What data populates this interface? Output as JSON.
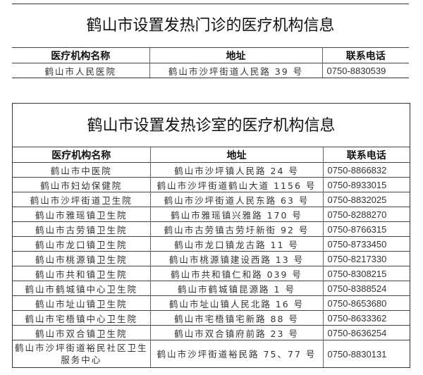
{
  "clinics": {
    "title": "鹤山市设置发热门诊的医疗机构信息",
    "headers": [
      "医疗机构名称",
      "地址",
      "联系电话"
    ],
    "rows": [
      {
        "name": "鹤山市人民医院",
        "address": "鹤山市沙坪街道人民路 39 号",
        "phone": "0750-8830539"
      }
    ]
  },
  "rooms": {
    "title": "鹤山市设置发热诊室的医疗机构信息",
    "headers": [
      "医疗机构名称",
      "地址",
      "联系电话"
    ],
    "rows": [
      {
        "name": "鹤山市中医院",
        "address": "鹤山市沙坪镇人民路 24 号",
        "phone": "0750-8866832"
      },
      {
        "name": "鹤山市妇幼保健院",
        "address": "鹤山市沙坪街道鹤山大道 1156 号",
        "phone": "0750-8933015"
      },
      {
        "name": "鹤山市沙坪街道卫生院",
        "address": "鹤山市沙坪街道人民东路 63 号",
        "phone": "0750-8832025"
      },
      {
        "name": "鹤山市雅瑶镇卫生院",
        "address": "鹤山市雅瑶镇兴雅路 170 号",
        "phone": "0750-8288270"
      },
      {
        "name": "鹤山市古劳镇卫生院",
        "address": "鹤山市古劳镇古劳圩新街 92 号",
        "phone": "0750-8766315"
      },
      {
        "name": "鹤山市龙口镇卫生院",
        "address": "鹤山市龙口镇龙古路 11 号",
        "phone": "0750-8733450"
      },
      {
        "name": "鹤山市桃源镇卫生院",
        "address": "鹤山市桃源镇建设西路 13 号",
        "phone": "0750-8217330"
      },
      {
        "name": "鹤山市共和镇卫生院",
        "address": "鹤山市共和镇仁和路 039 号",
        "phone": "0750-8308215"
      },
      {
        "name": "鹤山市鹤城镇中心卫生院",
        "address": "鹤山市鹤城镇昆源路 1 号",
        "phone": "0750-8388524"
      },
      {
        "name": "鹤山市址山镇卫生院",
        "address": "鹤山市址山镇人民北路 16 号",
        "phone": "0750-8653680"
      },
      {
        "name": "鹤山市宅梧镇中心卫生院",
        "address": "鹤山市宅梧镇宅新路 88 号",
        "phone": "0750-8633362"
      },
      {
        "name": "鹤山市双合镇卫生院",
        "address": "鹤山市双合镇府前路 23 号",
        "phone": "0750-8636254"
      },
      {
        "name": "鹤山市沙坪街道裕民社区卫生服务中心",
        "address": "鹤山市沙坪街道裕民路 75、77 号",
        "phone": "0750-8830131"
      }
    ]
  }
}
